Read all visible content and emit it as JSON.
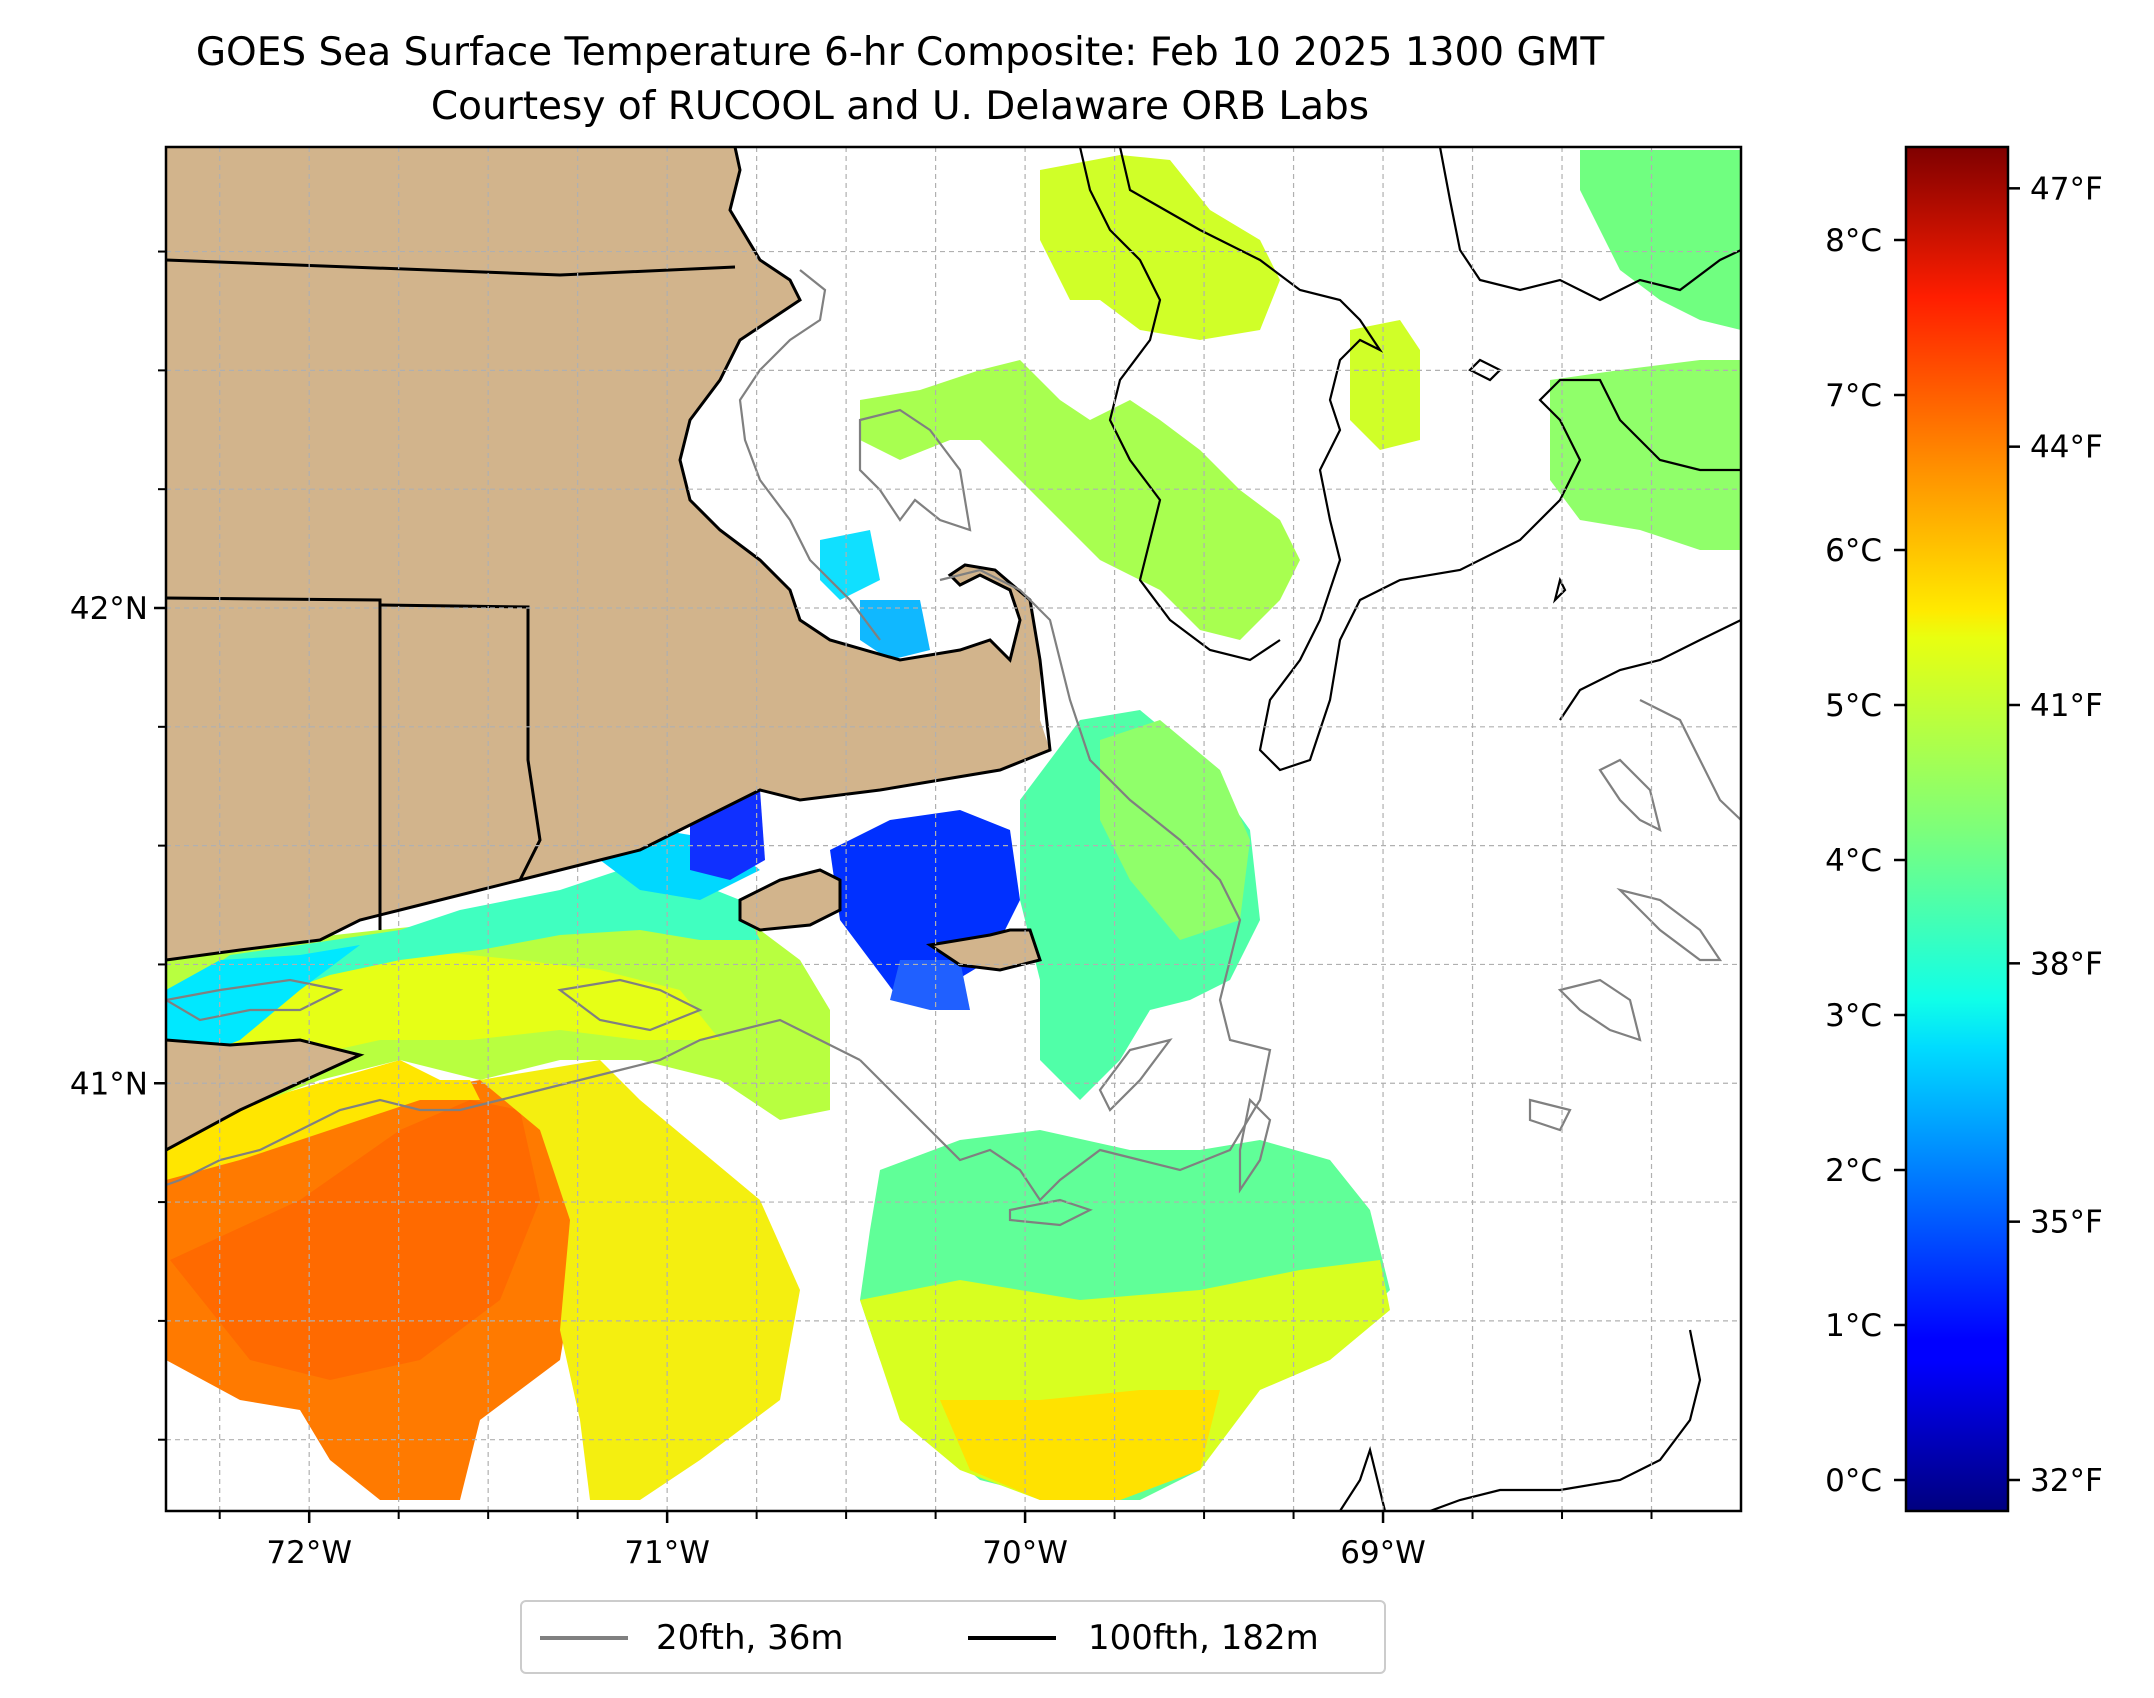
{
  "title": {
    "line1": "GOES Sea Surface Temperature 6-hr Composite: Feb 10 2025 1300 GMT",
    "line2": "Courtesy of RUCOOL and U. Delaware ORB Labs"
  },
  "map": {
    "region": "Southern New England shelf",
    "lon_range": [
      -72.4,
      -68.0
    ],
    "lat_range": [
      40.1,
      42.97
    ],
    "lon_ticks": [
      {
        "value": -72,
        "label": "72°W"
      },
      {
        "value": -71,
        "label": "71°W"
      },
      {
        "value": -70,
        "label": "70°W"
      },
      {
        "value": -69,
        "label": "69°W"
      }
    ],
    "lat_ticks": [
      {
        "value": 42,
        "label": "42°N"
      },
      {
        "value": 41,
        "label": "41°N"
      }
    ],
    "minor_lon": [
      -72.25,
      -71.75,
      -71.5,
      -71.25,
      -70.75,
      -70.5,
      -70.25,
      -69.75,
      -69.5,
      -69.25,
      -68.75,
      -68.5,
      -68.25
    ],
    "minor_lat": [
      40.25,
      40.5,
      40.75,
      41.25,
      41.5,
      41.75,
      42.25,
      42.5,
      42.75
    ],
    "grid": true,
    "land_color": "#d2b48c",
    "colormap": "jet"
  },
  "colorbar": {
    "celsius_range": [
      -0.2,
      8.6
    ],
    "celsius_ticks": [
      {
        "value": 0,
        "label": "0°C"
      },
      {
        "value": 1,
        "label": "1°C"
      },
      {
        "value": 2,
        "label": "2°C"
      },
      {
        "value": 3,
        "label": "3°C"
      },
      {
        "value": 4,
        "label": "4°C"
      },
      {
        "value": 5,
        "label": "5°C"
      },
      {
        "value": 6,
        "label": "6°C"
      },
      {
        "value": 7,
        "label": "7°C"
      },
      {
        "value": 8,
        "label": "8°C"
      }
    ],
    "fahrenheit_ticks": [
      {
        "value": 32,
        "label": "32°F"
      },
      {
        "value": 35,
        "label": "35°F"
      },
      {
        "value": 38,
        "label": "38°F"
      },
      {
        "value": 41,
        "label": "41°F"
      },
      {
        "value": 44,
        "label": "44°F"
      },
      {
        "value": 47,
        "label": "47°F"
      }
    ]
  },
  "legend": {
    "items": [
      {
        "label": "20fth, 36m",
        "color": "#808080"
      },
      {
        "label": "100fth, 182m",
        "color": "#000000"
      }
    ]
  }
}
